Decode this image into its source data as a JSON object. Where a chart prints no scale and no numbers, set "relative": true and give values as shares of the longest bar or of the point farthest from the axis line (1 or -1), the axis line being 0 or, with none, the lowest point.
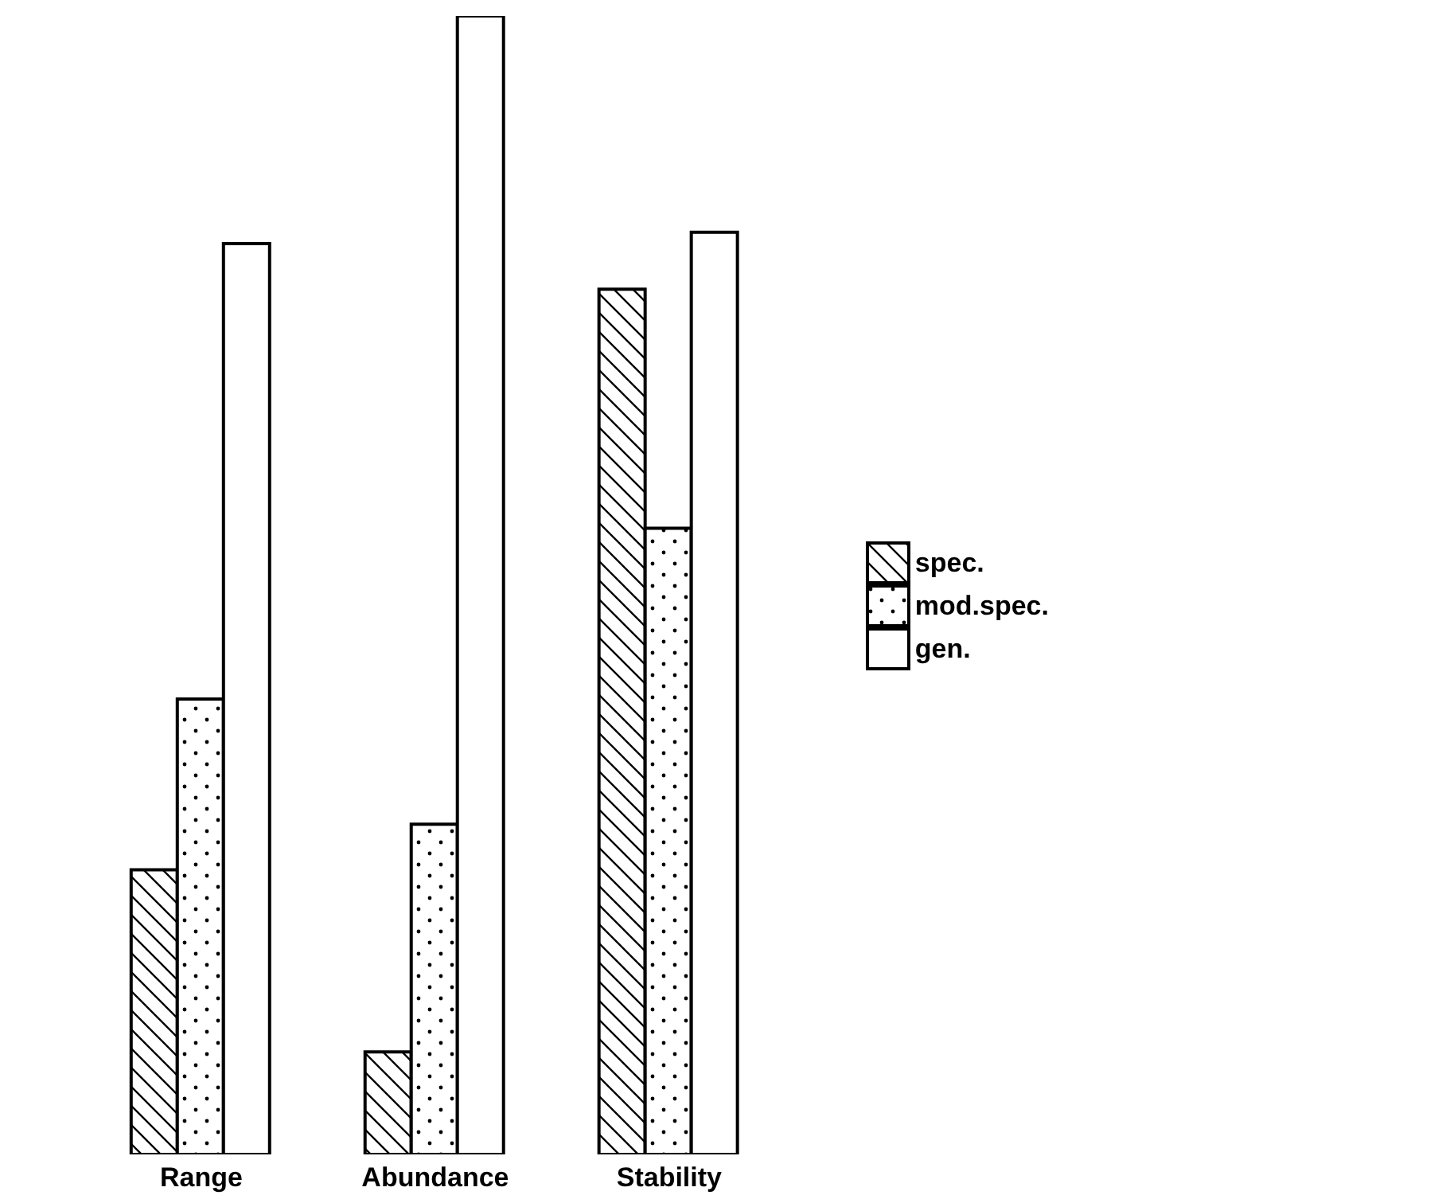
{
  "chart_data": {
    "type": "bar",
    "relative": true,
    "categories": [
      "Range",
      "Abundance",
      "Stability"
    ],
    "series": [
      {
        "name": "spec.",
        "color": "#000000",
        "values": [
          0.25,
          0.09,
          0.76
        ]
      },
      {
        "name": "mod.spec.",
        "color": "#000000",
        "values": [
          0.4,
          0.29,
          0.55
        ]
      },
      {
        "name": "gen.",
        "color": "#000000",
        "values": [
          0.8,
          1,
          0.81
        ]
      }
    ],
    "legend": "right",
    "grid": false
  }
}
